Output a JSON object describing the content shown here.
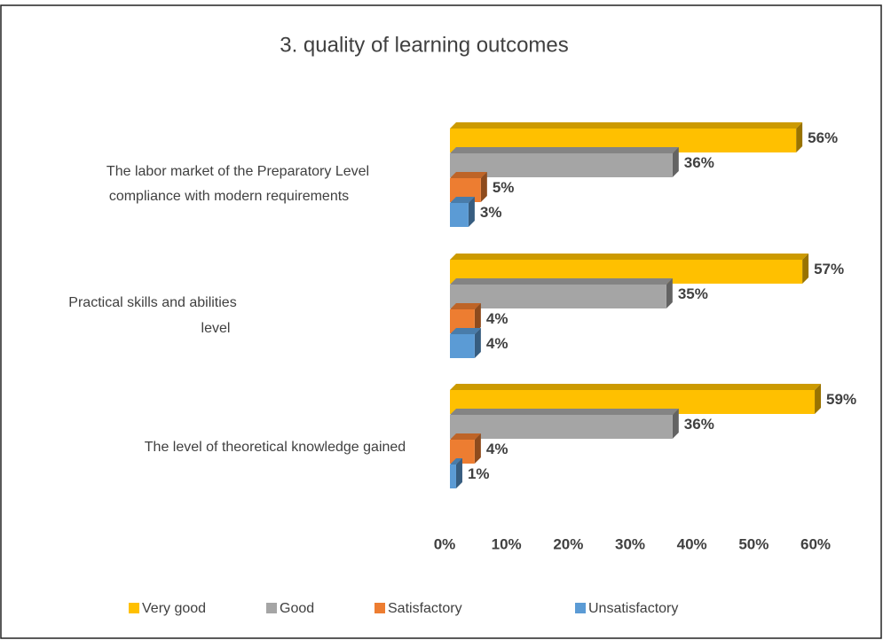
{
  "chart_data": {
    "type": "bar",
    "orientation": "horizontal",
    "title": "3. quality of learning outcomes",
    "categories": [
      [
        "The labor market of the Preparatory Level",
        "compliance with modern requirements"
      ],
      [
        "Practical skills and abilities",
        "level"
      ],
      [
        "The level of theoretical knowledge gained"
      ]
    ],
    "series": [
      {
        "name": "Very good",
        "color": "#FFC000",
        "values": [
          56,
          57,
          59
        ],
        "value_labels": [
          "56%",
          "57%",
          "59%"
        ]
      },
      {
        "name": "Good",
        "color": "#A5A5A5",
        "values": [
          36,
          35,
          36
        ],
        "value_labels": [
          "36%",
          "35%",
          "36%"
        ]
      },
      {
        "name": "Satisfactory",
        "color": "#ED7D31",
        "values": [
          5,
          4,
          4
        ],
        "value_labels": [
          "5%",
          "4%",
          "4%"
        ]
      },
      {
        "name": "Unsatisfactory",
        "color": "#5B9BD5",
        "values": [
          3,
          4,
          1
        ],
        "value_labels": [
          "3%",
          "4%",
          "1%"
        ]
      }
    ],
    "xlim": [
      0,
      60
    ],
    "xticks": [
      {
        "value": 0,
        "label": "0%"
      },
      {
        "value": 10,
        "label": "10%"
      },
      {
        "value": 20,
        "label": "20%"
      },
      {
        "value": 30,
        "label": "30%"
      },
      {
        "value": 40,
        "label": "40%"
      },
      {
        "value": 50,
        "label": "50%"
      },
      {
        "value": 60,
        "label": "60%"
      }
    ],
    "legend": "bottom"
  }
}
